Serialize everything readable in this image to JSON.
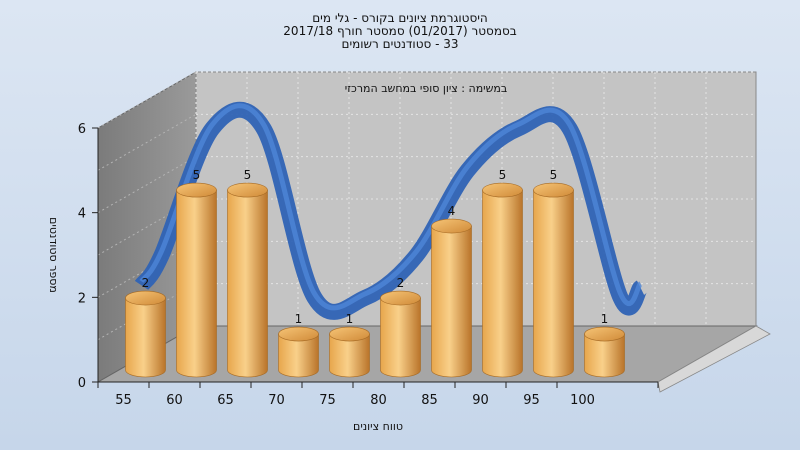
{
  "header": {
    "line1": "היסטוגרמת ציונים בקורס - גלי מים",
    "line2": "בסמסטר  (01/2017)  סמסטר חורף 2017/18",
    "line3": "33 - סטודנטים רשומים"
  },
  "chart_data": {
    "type": "bar",
    "subtitle": "במשימה : ציון סופי במחשב המרכזי",
    "xlabel": "טווח ציונים",
    "ylabel": "מספר סטודנטים",
    "categories": [
      "55",
      "60",
      "65",
      "70",
      "75",
      "80",
      "85",
      "90",
      "95",
      "100"
    ],
    "values": [
      2,
      5,
      5,
      1,
      1,
      2,
      4,
      5,
      5,
      1
    ],
    "y_ticks": [
      "0",
      "2",
      "4",
      "6"
    ],
    "ylim": [
      0,
      6
    ],
    "grid": true,
    "curve": "smooth blue ribbon trend over the bars",
    "colors": {
      "bar_light": "#f9d08a",
      "bar_mid": "#e7a64c",
      "bar_dark": "#b9742a",
      "curve": "#3770c4",
      "back_wall": "#c2c2c2",
      "side_wall": "#8a8a8a",
      "floor": "#a8a8a8"
    }
  }
}
